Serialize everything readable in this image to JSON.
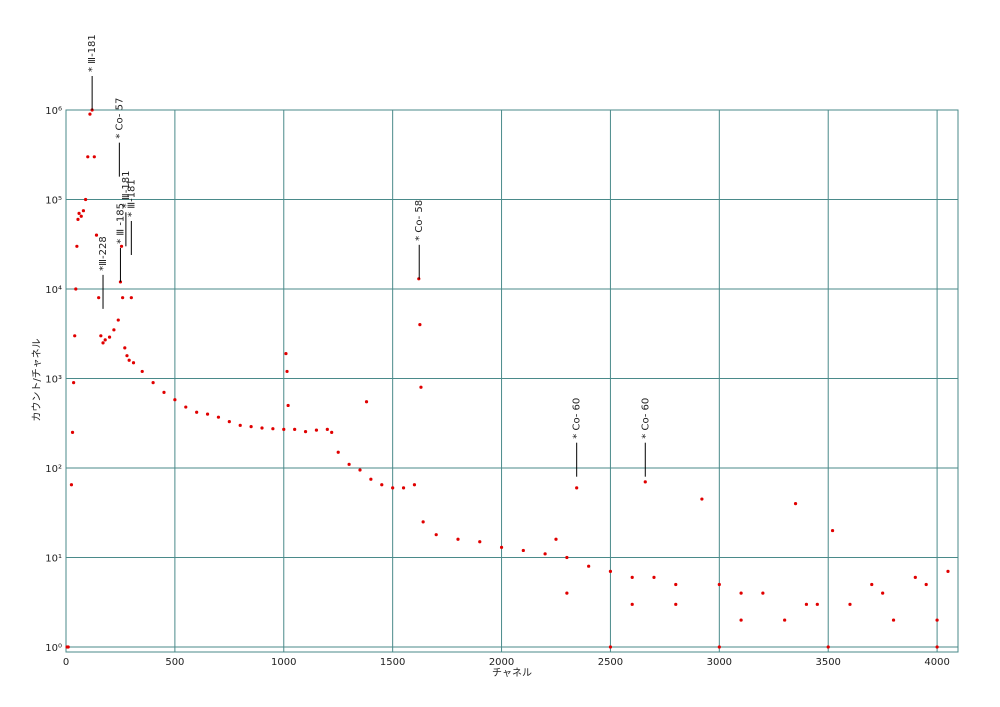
{
  "chart_data": {
    "type": "scatter",
    "x_label": "チャネル",
    "y_label": "カウント/チャネル",
    "color": "#e00000",
    "grid": true,
    "grid_color": "#4a8a8a",
    "log_y": true,
    "xlim": [
      0,
      4096
    ],
    "ylim": [
      0.88,
      1000000
    ],
    "xticks": [
      0,
      500,
      1000,
      1500,
      2000,
      2500,
      3000,
      3500,
      4000
    ],
    "yticks": [
      {
        "value": 1,
        "label": "10⁰"
      },
      {
        "value": 10,
        "label": "10¹"
      },
      {
        "value": 100,
        "label": "10²"
      },
      {
        "value": 1000,
        "label": "10³"
      },
      {
        "value": 10000,
        "label": "10⁴"
      },
      {
        "value": 100000,
        "label": "10⁵"
      },
      {
        "value": 1000000,
        "label": "10⁶"
      }
    ],
    "x": [
      5,
      10,
      25,
      30,
      35,
      40,
      45,
      50,
      55,
      60,
      70,
      80,
      90,
      100,
      110,
      120,
      130,
      140,
      150,
      160,
      170,
      180,
      200,
      220,
      240,
      250,
      255,
      260,
      270,
      280,
      290,
      300,
      310,
      350,
      400,
      450,
      500,
      550,
      600,
      650,
      700,
      750,
      800,
      850,
      900,
      950,
      1000,
      1010,
      1015,
      1020,
      1050,
      1100,
      1150,
      1200,
      1220,
      1250,
      1300,
      1350,
      1380,
      1400,
      1450,
      1500,
      1550,
      1600,
      1620,
      1625,
      1630,
      1640,
      1700,
      1800,
      1900,
      2000,
      2100,
      2200,
      2250,
      2300,
      2345,
      2400,
      2500,
      2600,
      2660,
      2700,
      2800,
      2920,
      3000,
      3100,
      3200,
      3350,
      3400,
      3520,
      3600,
      3800,
      4000,
      2500,
      3000,
      3500,
      4000,
      2800,
      3300,
      3700,
      3900,
      4050,
      2300,
      2600,
      3100,
      3450,
      3750,
      3950
    ],
    "values": [
      1,
      1,
      65,
      250,
      900,
      3000,
      10000,
      30000,
      60000,
      70000,
      65000,
      75000,
      100000,
      300000,
      900000,
      1000000,
      300000,
      40000,
      8000,
      3000,
      2500,
      2700,
      2900,
      3500,
      4500,
      12000,
      30000,
      8000,
      2200,
      1800,
      1600,
      8000,
      1500,
      1200,
      900,
      700,
      580,
      480,
      420,
      400,
      370,
      330,
      300,
      290,
      280,
      275,
      270,
      1900,
      1200,
      500,
      270,
      255,
      265,
      270,
      250,
      150,
      110,
      95,
      550,
      75,
      65,
      60,
      60,
      65,
      13000,
      4000,
      800,
      25,
      18,
      16,
      15,
      13,
      12,
      11,
      16,
      10,
      60,
      8,
      7,
      6,
      70,
      6,
      5,
      45,
      5,
      4,
      4,
      40,
      3,
      20,
      3,
      2,
      2,
      1,
      1,
      1,
      1,
      3,
      2,
      5,
      6,
      7,
      4,
      3,
      2,
      3,
      4,
      5
    ],
    "annotations": [
      {
        "text": "* Ⅲ-181",
        "x": 120,
        "y": 1000000
      },
      {
        "text": "* Co- 57",
        "x": 245,
        "y": 180000
      },
      {
        "text": "*Ⅲ-228",
        "x": 170,
        "y": 6000
      },
      {
        "text": "* Ⅲ -185",
        "x": 250,
        "y": 12000
      },
      {
        "text": "* Ⅲ-181",
        "x": 275,
        "y": 30000
      },
      {
        "text": "* Ⅲ-181",
        "x": 300,
        "y": 24000
      },
      {
        "text": "* Co- 58",
        "x": 1622,
        "y": 13000
      },
      {
        "text": "* Co- 60",
        "x": 2345,
        "y": 80
      },
      {
        "text": "* Co- 60",
        "x": 2660,
        "y": 80
      }
    ]
  }
}
